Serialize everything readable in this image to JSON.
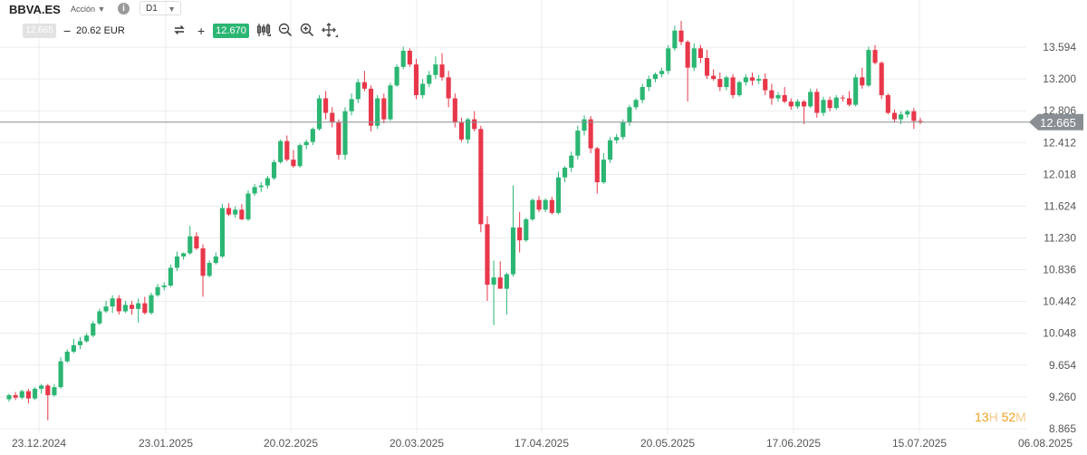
{
  "toolbar": {
    "symbol": "BBVA.ES",
    "instrument_type": "Acción",
    "info_icon": "info-icon",
    "timeframe": "D1",
    "bid": "12.665",
    "minus": "−",
    "amount": "20.62 EUR",
    "swap_icon": "swap-icon",
    "plus": "+",
    "ask": "12.670",
    "tools": [
      "candlestick-icon",
      "zoom-out-icon",
      "zoom-in-icon",
      "move-icon"
    ]
  },
  "timer": {
    "h": "13",
    "h_unit": "H",
    "m": "52",
    "m_unit": "M"
  },
  "colors": {
    "up": "#2bb673",
    "down": "#e8374a",
    "price_line": "#8a8f93",
    "label_bg": "#8a8f93",
    "grid": "#ececec",
    "axis_text": "#555555"
  },
  "chart_data": {
    "type": "candlestick",
    "ylim": [
      8.865,
      13.988
    ],
    "y_ticks": [
      "13.594",
      "13.200",
      "12.806",
      "12.412",
      "12.018",
      "11.624",
      "11.230",
      "10.836",
      "10.442",
      "10.048",
      "9.654",
      "9.260",
      "8.865"
    ],
    "x_ticks": [
      "23.12.2024",
      "23.01.2025",
      "20.02.2025",
      "20.03.2025",
      "17.04.2025",
      "20.05.2025",
      "17.06.2025",
      "15.07.2025",
      "06.08.2025"
    ],
    "last_price": "12.665",
    "grid": true,
    "candles": [
      [
        9.23,
        9.3,
        9.2,
        9.28
      ],
      [
        9.28,
        9.32,
        9.22,
        9.25
      ],
      [
        9.25,
        9.35,
        9.23,
        9.33
      ],
      [
        9.33,
        9.36,
        9.18,
        9.24
      ],
      [
        9.24,
        9.38,
        9.22,
        9.36
      ],
      [
        9.36,
        9.42,
        9.3,
        9.4
      ],
      [
        9.4,
        9.42,
        8.97,
        9.28
      ],
      [
        9.28,
        9.42,
        9.26,
        9.38
      ],
      [
        9.38,
        9.75,
        9.36,
        9.7
      ],
      [
        9.7,
        9.85,
        9.68,
        9.82
      ],
      [
        9.82,
        9.98,
        9.8,
        9.9
      ],
      [
        9.9,
        10.0,
        9.85,
        9.95
      ],
      [
        9.95,
        10.05,
        9.93,
        10.02
      ],
      [
        10.02,
        10.2,
        10.0,
        10.17
      ],
      [
        10.17,
        10.35,
        10.15,
        10.32
      ],
      [
        10.32,
        10.45,
        10.3,
        10.38
      ],
      [
        10.38,
        10.52,
        10.3,
        10.48
      ],
      [
        10.48,
        10.52,
        10.28,
        10.32
      ],
      [
        10.32,
        10.45,
        10.3,
        10.4
      ],
      [
        10.4,
        10.45,
        10.28,
        10.35
      ],
      [
        10.35,
        10.48,
        10.18,
        10.42
      ],
      [
        10.42,
        10.5,
        10.28,
        10.3
      ],
      [
        10.3,
        10.55,
        10.28,
        10.52
      ],
      [
        10.52,
        10.66,
        10.5,
        10.62
      ],
      [
        10.62,
        10.68,
        10.58,
        10.64
      ],
      [
        10.64,
        10.9,
        10.62,
        10.86
      ],
      [
        10.86,
        11.06,
        10.82,
        11.0
      ],
      [
        11.0,
        11.05,
        10.96,
        11.04
      ],
      [
        11.04,
        11.38,
        11.02,
        11.25
      ],
      [
        11.25,
        11.3,
        11.08,
        11.1
      ],
      [
        11.1,
        11.15,
        10.5,
        10.76
      ],
      [
        10.76,
        10.95,
        10.74,
        10.92
      ],
      [
        10.92,
        11.05,
        10.9,
        11.0
      ],
      [
        11.0,
        11.65,
        10.98,
        11.6
      ],
      [
        11.6,
        11.66,
        11.5,
        11.52
      ],
      [
        11.52,
        11.62,
        11.48,
        11.58
      ],
      [
        11.58,
        11.65,
        11.45,
        11.46
      ],
      [
        11.46,
        11.82,
        11.44,
        11.78
      ],
      [
        11.78,
        11.9,
        11.75,
        11.86
      ],
      [
        11.86,
        11.92,
        11.8,
        11.88
      ],
      [
        11.88,
        12.0,
        11.84,
        11.97
      ],
      [
        11.97,
        12.2,
        11.95,
        12.17
      ],
      [
        12.17,
        12.45,
        12.15,
        12.43
      ],
      [
        12.43,
        12.5,
        12.18,
        12.2
      ],
      [
        12.2,
        12.32,
        12.1,
        12.12
      ],
      [
        12.12,
        12.4,
        12.1,
        12.38
      ],
      [
        12.38,
        12.45,
        12.33,
        12.42
      ],
      [
        12.42,
        12.6,
        12.38,
        12.58
      ],
      [
        12.58,
        13.0,
        12.56,
        12.96
      ],
      [
        12.96,
        13.05,
        12.7,
        12.78
      ],
      [
        12.78,
        12.85,
        12.6,
        12.66
      ],
      [
        12.66,
        12.7,
        12.2,
        12.26
      ],
      [
        12.26,
        12.85,
        12.2,
        12.8
      ],
      [
        12.8,
        13.02,
        12.75,
        12.95
      ],
      [
        12.95,
        13.2,
        12.9,
        13.16
      ],
      [
        13.16,
        13.3,
        13.05,
        13.08
      ],
      [
        13.08,
        13.12,
        12.55,
        12.62
      ],
      [
        12.62,
        13.0,
        12.58,
        12.96
      ],
      [
        12.96,
        13.02,
        12.65,
        12.7
      ],
      [
        12.7,
        13.15,
        12.68,
        13.12
      ],
      [
        13.12,
        13.38,
        13.1,
        13.35
      ],
      [
        13.35,
        13.6,
        13.32,
        13.55
      ],
      [
        13.55,
        13.58,
        13.35,
        13.38
      ],
      [
        13.38,
        13.45,
        12.95,
        13.0
      ],
      [
        13.0,
        13.2,
        12.96,
        13.14
      ],
      [
        13.14,
        13.3,
        13.1,
        13.25
      ],
      [
        13.25,
        13.48,
        13.2,
        13.38
      ],
      [
        13.38,
        13.52,
        13.18,
        13.22
      ],
      [
        13.22,
        13.3,
        12.85,
        12.96
      ],
      [
        12.96,
        13.02,
        12.6,
        12.66
      ],
      [
        12.66,
        12.72,
        12.42,
        12.45
      ],
      [
        12.45,
        12.72,
        12.4,
        12.7
      ],
      [
        12.7,
        12.8,
        12.55,
        12.58
      ],
      [
        12.58,
        12.62,
        11.3,
        11.4
      ],
      [
        11.4,
        11.5,
        10.45,
        10.65
      ],
      [
        10.65,
        10.95,
        10.15,
        10.74
      ],
      [
        10.74,
        10.94,
        10.6,
        10.6
      ],
      [
        10.6,
        10.8,
        10.28,
        10.78
      ],
      [
        10.78,
        11.88,
        10.75,
        11.36
      ],
      [
        11.36,
        11.55,
        11.05,
        11.2
      ],
      [
        11.2,
        11.48,
        11.18,
        11.46
      ],
      [
        11.46,
        11.72,
        11.44,
        11.7
      ],
      [
        11.7,
        11.75,
        11.55,
        11.58
      ],
      [
        11.58,
        11.72,
        11.55,
        11.7
      ],
      [
        11.7,
        11.74,
        11.52,
        11.54
      ],
      [
        11.54,
        12.05,
        11.52,
        11.98
      ],
      [
        11.98,
        12.12,
        11.92,
        12.1
      ],
      [
        12.1,
        12.3,
        12.05,
        12.25
      ],
      [
        12.25,
        12.62,
        12.2,
        12.56
      ],
      [
        12.56,
        12.75,
        12.5,
        12.7
      ],
      [
        12.7,
        12.74,
        12.28,
        12.34
      ],
      [
        12.34,
        12.36,
        11.78,
        11.92
      ],
      [
        11.92,
        12.28,
        11.9,
        12.2
      ],
      [
        12.2,
        12.48,
        12.16,
        12.44
      ],
      [
        12.44,
        12.52,
        12.4,
        12.48
      ],
      [
        12.48,
        12.7,
        12.45,
        12.66
      ],
      [
        12.66,
        12.88,
        12.62,
        12.85
      ],
      [
        12.85,
        12.96,
        12.82,
        12.94
      ],
      [
        12.94,
        13.14,
        12.9,
        13.1
      ],
      [
        13.1,
        13.24,
        13.05,
        13.2
      ],
      [
        13.2,
        13.28,
        13.16,
        13.26
      ],
      [
        13.26,
        13.34,
        13.22,
        13.3
      ],
      [
        13.3,
        13.62,
        13.26,
        13.58
      ],
      [
        13.58,
        13.86,
        13.55,
        13.8
      ],
      [
        13.8,
        13.92,
        13.62,
        13.66
      ],
      [
        13.66,
        13.68,
        12.92,
        13.34
      ],
      [
        13.34,
        13.64,
        13.3,
        13.58
      ],
      [
        13.58,
        13.62,
        13.4,
        13.46
      ],
      [
        13.46,
        13.56,
        13.2,
        13.24
      ],
      [
        13.24,
        13.32,
        13.18,
        13.2
      ],
      [
        13.2,
        13.28,
        13.05,
        13.1
      ],
      [
        13.1,
        13.24,
        13.06,
        13.22
      ],
      [
        13.22,
        13.26,
        12.96,
        13.0
      ],
      [
        13.0,
        13.18,
        12.98,
        13.16
      ],
      [
        13.16,
        13.26,
        13.12,
        13.22
      ],
      [
        13.22,
        13.28,
        13.12,
        13.18
      ],
      [
        13.18,
        13.25,
        13.14,
        13.2
      ],
      [
        13.2,
        13.27,
        13.0,
        13.06
      ],
      [
        13.06,
        13.14,
        12.88,
        12.96
      ],
      [
        12.96,
        13.04,
        12.92,
        13.0
      ],
      [
        13.0,
        13.1,
        12.9,
        12.92
      ],
      [
        12.92,
        12.96,
        12.82,
        12.86
      ],
      [
        12.86,
        12.95,
        12.83,
        12.92
      ],
      [
        12.92,
        12.94,
        12.64,
        12.86
      ],
      [
        12.86,
        13.08,
        12.84,
        13.04
      ],
      [
        13.04,
        13.08,
        12.72,
        12.78
      ],
      [
        12.78,
        12.98,
        12.74,
        12.94
      ],
      [
        12.94,
        12.98,
        12.8,
        12.84
      ],
      [
        12.84,
        13.0,
        12.82,
        12.97
      ],
      [
        12.97,
        13.0,
        12.92,
        12.96
      ],
      [
        12.96,
        13.05,
        12.86,
        12.88
      ],
      [
        12.88,
        13.26,
        12.86,
        13.22
      ],
      [
        13.22,
        13.34,
        13.08,
        13.12
      ],
      [
        13.12,
        13.6,
        13.1,
        13.56
      ],
      [
        13.56,
        13.62,
        13.38,
        13.4
      ],
      [
        13.4,
        13.42,
        12.95,
        13.0
      ],
      [
        13.0,
        13.02,
        12.76,
        12.78
      ],
      [
        12.78,
        12.82,
        12.66,
        12.7
      ],
      [
        12.7,
        12.8,
        12.64,
        12.76
      ],
      [
        12.76,
        12.82,
        12.72,
        12.8
      ],
      [
        12.8,
        12.84,
        12.58,
        12.68
      ],
      [
        12.68,
        12.72,
        12.64,
        12.665
      ]
    ]
  }
}
